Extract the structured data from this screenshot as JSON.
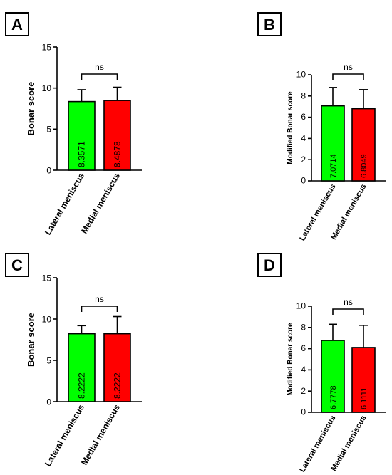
{
  "chart_data": [
    {
      "panel": "A",
      "type": "bar",
      "categories": [
        "Lateral meniscus",
        "Medial meniscus"
      ],
      "values": [
        8.3571,
        8.4878
      ],
      "value_labels": [
        "8.3571",
        "8.4878"
      ],
      "error_upper": [
        9.8,
        10.1
      ],
      "ylabel": "Bonar score",
      "ylim": [
        0,
        15
      ],
      "yticks": [
        "0",
        "5",
        "10",
        "15"
      ],
      "significance": "ns",
      "colors": [
        "#00ff00",
        "#ff0000"
      ]
    },
    {
      "panel": "B",
      "type": "bar",
      "categories": [
        "Lateral meniscus",
        "Medial meniscus"
      ],
      "values": [
        7.0714,
        6.8049
      ],
      "value_labels": [
        "7.0714",
        "6.8049"
      ],
      "error_upper": [
        8.8,
        8.6
      ],
      "ylabel": "Modified Bonar score",
      "ylim": [
        0,
        10
      ],
      "yticks": [
        "0",
        "2",
        "4",
        "6",
        "8",
        "10"
      ],
      "significance": "ns",
      "colors": [
        "#00ff00",
        "#ff0000"
      ]
    },
    {
      "panel": "C",
      "type": "bar",
      "categories": [
        "Lateral meniscus",
        "Medial meniscus"
      ],
      "values": [
        8.2222,
        8.2222
      ],
      "value_labels": [
        "8.2222",
        "8.2222"
      ],
      "error_upper": [
        9.2,
        10.3
      ],
      "ylabel": "Bonar score",
      "ylim": [
        0,
        15
      ],
      "yticks": [
        "0",
        "5",
        "10",
        "15"
      ],
      "significance": "ns",
      "colors": [
        "#00ff00",
        "#ff0000"
      ]
    },
    {
      "panel": "D",
      "type": "bar",
      "categories": [
        "Lateral meniscus",
        "Medial meniscus"
      ],
      "values": [
        6.7778,
        6.1111
      ],
      "value_labels": [
        "6.7778",
        "6.1111"
      ],
      "error_upper": [
        8.3,
        8.2
      ],
      "ylabel": "Modified Bonar score",
      "ylim": [
        0,
        10
      ],
      "yticks": [
        "0",
        "2",
        "4",
        "6",
        "8",
        "10"
      ],
      "significance": "ns",
      "colors": [
        "#00ff00",
        "#ff0000"
      ]
    }
  ]
}
